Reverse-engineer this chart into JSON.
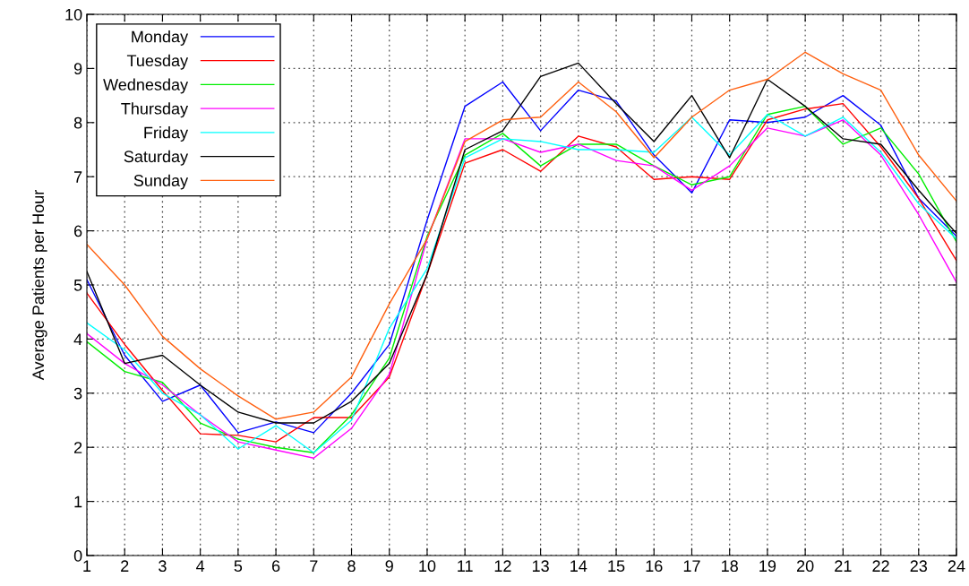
{
  "chart_data": {
    "type": "line",
    "ylabel": "Average Patients per Hour",
    "x": [
      1,
      2,
      3,
      4,
      5,
      6,
      7,
      8,
      9,
      10,
      11,
      12,
      13,
      14,
      15,
      16,
      17,
      18,
      19,
      20,
      21,
      22,
      23,
      24
    ],
    "xlim": [
      1,
      24
    ],
    "xticks": [
      1,
      2,
      3,
      4,
      5,
      6,
      7,
      8,
      9,
      10,
      11,
      12,
      13,
      14,
      15,
      16,
      17,
      18,
      19,
      20,
      21,
      22,
      23,
      24
    ],
    "ylim": [
      0,
      10
    ],
    "yticks": [
      0,
      1,
      2,
      3,
      4,
      5,
      6,
      7,
      8,
      9,
      10
    ],
    "grid": true,
    "legend": "top left",
    "line_style": "solid",
    "series": [
      {
        "name": "Monday",
        "color": "#0000ff",
        "values": [
          5.1,
          3.7,
          2.85,
          3.15,
          2.27,
          2.47,
          2.27,
          3.0,
          3.9,
          6.2,
          8.3,
          8.75,
          7.85,
          8.6,
          8.4,
          7.4,
          6.7,
          8.05,
          8.0,
          8.1,
          8.5,
          7.95,
          6.6,
          5.9
        ]
      },
      {
        "name": "Tuesday",
        "color": "#ff0000",
        "values": [
          4.85,
          3.9,
          3.05,
          2.25,
          2.22,
          2.1,
          2.55,
          2.55,
          3.3,
          5.2,
          7.25,
          7.5,
          7.1,
          7.75,
          7.55,
          6.95,
          7.0,
          6.95,
          8.05,
          8.25,
          8.35,
          7.55,
          6.6,
          5.45
        ]
      },
      {
        "name": "Wednesday",
        "color": "#00ee00",
        "values": [
          3.95,
          3.4,
          3.2,
          2.45,
          2.15,
          2.0,
          1.9,
          2.6,
          3.65,
          5.9,
          7.4,
          7.8,
          7.2,
          7.6,
          7.6,
          7.2,
          6.85,
          7.0,
          8.15,
          8.3,
          7.6,
          7.9,
          7.05,
          5.8
        ]
      },
      {
        "name": "Thursday",
        "color": "#ff00ff",
        "values": [
          4.1,
          3.55,
          3.15,
          2.6,
          2.1,
          1.95,
          1.8,
          2.35,
          3.35,
          5.85,
          7.7,
          7.7,
          7.45,
          7.6,
          7.3,
          7.2,
          6.75,
          7.2,
          7.9,
          7.75,
          8.05,
          7.4,
          6.3,
          5.05
        ]
      },
      {
        "name": "Friday",
        "color": "#00ffff",
        "values": [
          4.3,
          3.8,
          3.0,
          2.6,
          1.97,
          2.4,
          1.9,
          2.5,
          4.2,
          5.3,
          7.35,
          7.7,
          7.65,
          7.5,
          7.5,
          7.45,
          8.1,
          7.4,
          8.15,
          7.75,
          8.1,
          7.45,
          6.5,
          5.85
        ]
      },
      {
        "name": "Saturday",
        "color": "#000000",
        "values": [
          5.25,
          3.55,
          3.7,
          3.15,
          2.65,
          2.45,
          2.45,
          2.85,
          3.55,
          5.2,
          7.5,
          7.85,
          8.85,
          9.1,
          8.35,
          7.65,
          8.5,
          7.35,
          8.8,
          8.3,
          7.7,
          7.6,
          6.75,
          5.95
        ]
      },
      {
        "name": "Sunday",
        "color": "#ff6010",
        "values": [
          5.75,
          5.0,
          4.05,
          3.45,
          2.95,
          2.52,
          2.65,
          3.3,
          4.65,
          5.85,
          7.65,
          8.05,
          8.1,
          8.75,
          8.2,
          7.35,
          8.1,
          8.6,
          8.8,
          9.3,
          8.9,
          8.6,
          7.4,
          6.55
        ]
      }
    ]
  }
}
